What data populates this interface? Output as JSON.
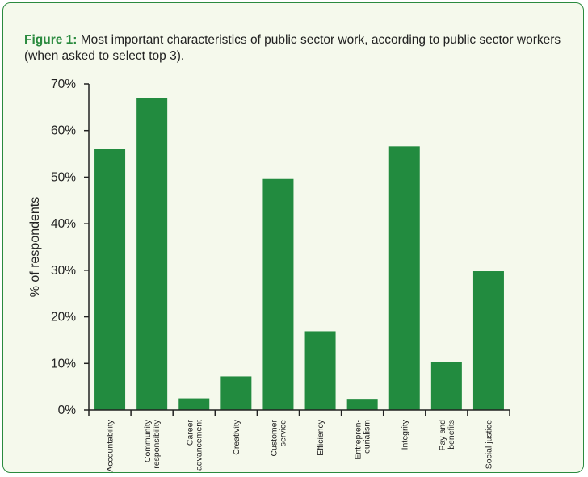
{
  "caption": {
    "lead": "Figure 1:",
    "text": "Most important characteristics of public sector work, according to public sector workers (when asked to select top 3)."
  },
  "colors": {
    "bar": "#228b3f",
    "frame": "#2a8a3e",
    "background": "#f5f9ec"
  },
  "chart_data": {
    "type": "bar",
    "title": "Most important characteristics of public sector work, according to public sector workers (when asked to select top 3).",
    "xlabel": "",
    "ylabel": "% of respondents",
    "ylim": [
      0,
      70
    ],
    "yticks": [
      "0%",
      "10%",
      "20%",
      "30%",
      "40%",
      "50%",
      "60%",
      "70%"
    ],
    "ytick_values": [
      0,
      10,
      20,
      30,
      40,
      50,
      60,
      70
    ],
    "categories": [
      [
        "Accountability"
      ],
      [
        "Community",
        "responsibility"
      ],
      [
        "Career",
        "advancement"
      ],
      [
        "Creativity"
      ],
      [
        "Customer",
        "service"
      ],
      [
        "Efficiency"
      ],
      [
        "Entrepren-",
        "eurialism"
      ],
      [
        "Integrity"
      ],
      [
        "Pay and",
        "benefits"
      ],
      [
        "Social justice"
      ]
    ],
    "values": [
      56,
      67,
      2.5,
      7.2,
      49.6,
      16.9,
      2.4,
      56.6,
      10.3,
      29.8
    ],
    "grid": false,
    "legend": "none"
  }
}
